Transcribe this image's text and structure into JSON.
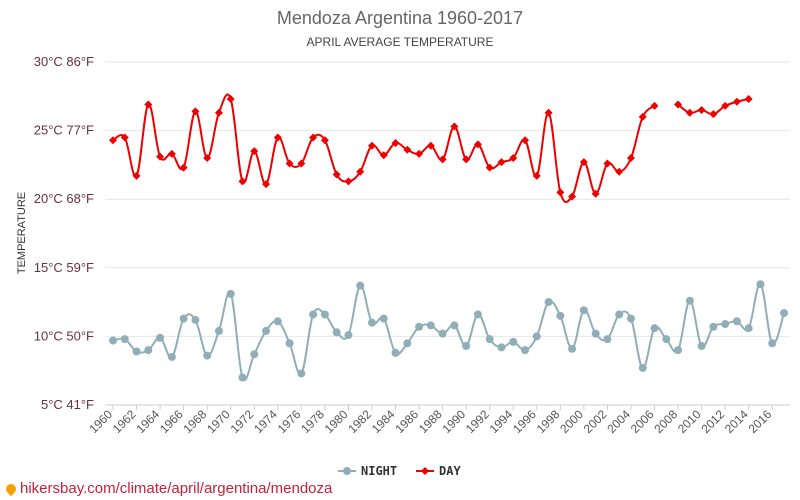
{
  "chart_data": {
    "type": "line",
    "title": "Mendoza Argentina 1960-2017",
    "subtitle": "APRIL AVERAGE TEMPERATURE",
    "ylabel": "TEMPERATURE",
    "ylim": [
      5,
      30
    ],
    "yticks": [
      {
        "value": 30,
        "label": "30°C 86°F"
      },
      {
        "value": 25,
        "label": "25°C 77°F"
      },
      {
        "value": 20,
        "label": "20°C 68°F"
      },
      {
        "value": 15,
        "label": "15°C 59°F"
      },
      {
        "value": 10,
        "label": "10°C 50°F"
      },
      {
        "value": 5,
        "label": "5°C 41°F"
      }
    ],
    "x": [
      1960,
      1961,
      1962,
      1963,
      1964,
      1965,
      1966,
      1967,
      1968,
      1969,
      1970,
      1971,
      1972,
      1973,
      1974,
      1975,
      1976,
      1977,
      1978,
      1979,
      1980,
      1981,
      1982,
      1983,
      1984,
      1985,
      1986,
      1987,
      1988,
      1989,
      1990,
      1991,
      1992,
      1993,
      1994,
      1995,
      1996,
      1997,
      1998,
      1999,
      2000,
      2001,
      2002,
      2003,
      2004,
      2005,
      2006,
      2007,
      2008,
      2009,
      2010,
      2011,
      2012,
      2013,
      2014,
      2015,
      2016,
      2017
    ],
    "xticks": [
      1960,
      1962,
      1964,
      1966,
      1968,
      1970,
      1972,
      1974,
      1976,
      1978,
      1980,
      1982,
      1984,
      1986,
      1988,
      1990,
      1992,
      1994,
      1996,
      1998,
      2000,
      2002,
      2004,
      2006,
      2008,
      2010,
      2012,
      2014,
      2016
    ],
    "legend_position": "bottom",
    "grid": true,
    "series": [
      {
        "name": "NIGHT",
        "color": "#90aeb8",
        "marker": "circle",
        "values": [
          9.7,
          9.8,
          8.9,
          9.0,
          9.9,
          8.5,
          11.3,
          11.2,
          8.6,
          10.4,
          13.1,
          7.0,
          8.7,
          10.4,
          11.1,
          9.5,
          7.3,
          11.6,
          11.6,
          10.3,
          10.1,
          13.7,
          11.0,
          11.3,
          8.8,
          9.5,
          10.7,
          10.8,
          10.2,
          10.8,
          9.3,
          11.6,
          9.8,
          9.2,
          9.6,
          9.0,
          10.0,
          12.5,
          11.5,
          9.1,
          11.9,
          10.2,
          9.8,
          11.6,
          11.3,
          7.7,
          10.6,
          9.8,
          9.0,
          12.6,
          9.3,
          10.7,
          10.9,
          11.1,
          10.6,
          13.8,
          9.5,
          11.7
        ]
      },
      {
        "name": "DAY",
        "color": "#ee0000",
        "marker": "diamond",
        "values": [
          24.3,
          24.5,
          21.7,
          26.9,
          23.1,
          23.3,
          22.3,
          26.4,
          23.0,
          26.3,
          27.3,
          21.3,
          23.5,
          21.1,
          24.5,
          22.6,
          22.6,
          24.5,
          24.3,
          21.8,
          21.3,
          22.0,
          23.9,
          23.2,
          24.1,
          23.6,
          23.3,
          23.9,
          22.9,
          25.3,
          22.9,
          24.0,
          22.3,
          22.7,
          23.0,
          24.3,
          21.7,
          26.3,
          20.5,
          20.2,
          22.7,
          20.4,
          22.6,
          22.0,
          23.0,
          26.0,
          26.8,
          null,
          26.9,
          26.3,
          26.5,
          26.2,
          26.8,
          27.1,
          27.3,
          null,
          null,
          null
        ]
      }
    ]
  },
  "footer": {
    "watermark": "hikersbay.com/climate/april/argentina/mendoza"
  }
}
